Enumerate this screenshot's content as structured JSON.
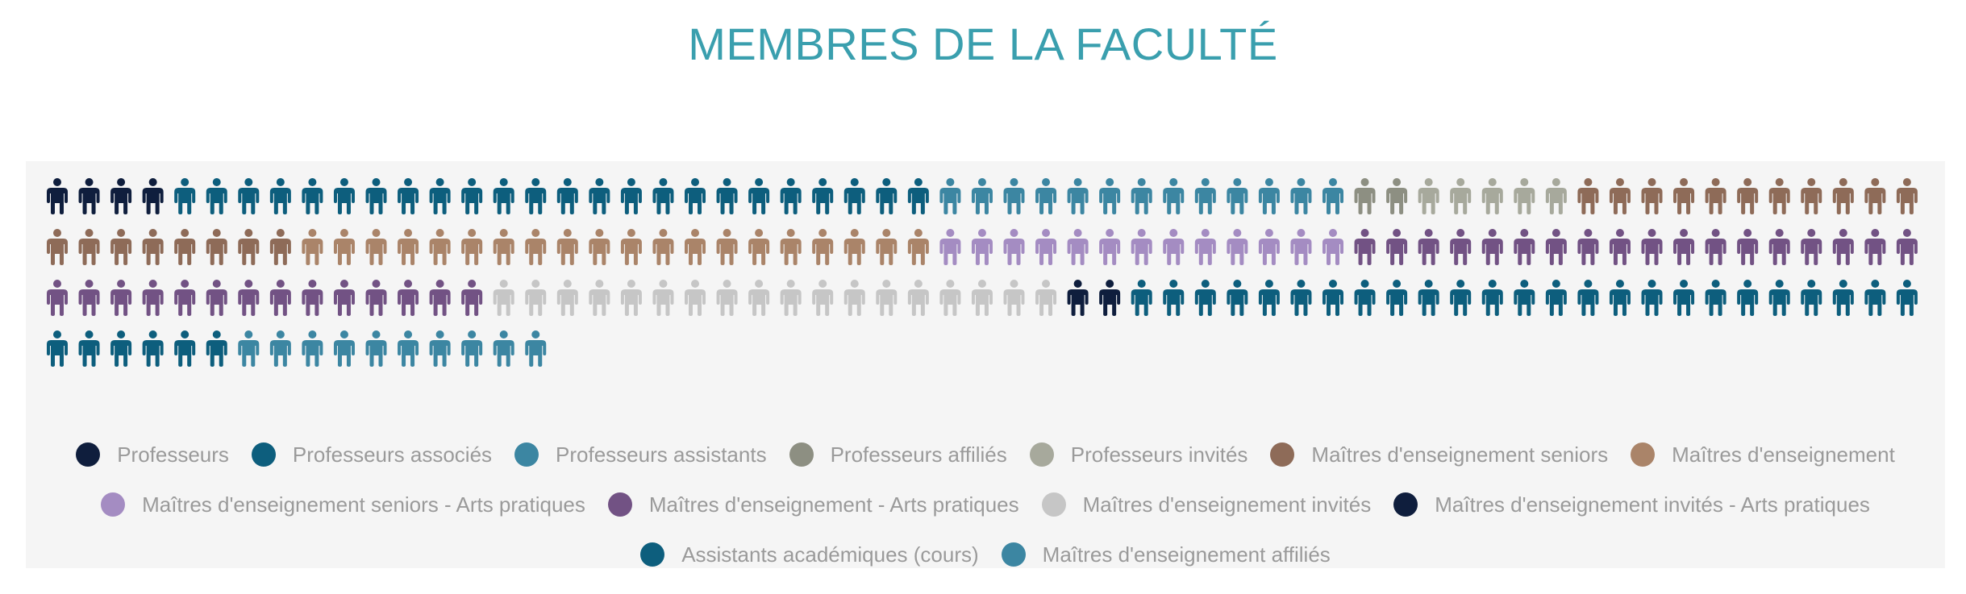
{
  "title": "MEMBRES DE LA FACULTÉ",
  "chart_data": {
    "type": "pictogram",
    "title": "MEMBRES DE LA FACULTÉ",
    "columns": 59,
    "series": [
      {
        "name": "Professeurs",
        "value": 4,
        "color": "#0f1e3d"
      },
      {
        "name": "Professeurs associés",
        "value": 24,
        "color": "#0d5e7d"
      },
      {
        "name": "Professeurs assistants",
        "value": 13,
        "color": "#3c86a2"
      },
      {
        "name": "Professeurs affiliés",
        "value": 2,
        "color": "#8d8f82"
      },
      {
        "name": "Professeurs invités",
        "value": 5,
        "color": "#a7a99c"
      },
      {
        "name": "Maîtres d'enseignement seniors",
        "value": 19,
        "color": "#8e6b58"
      },
      {
        "name": "Maîtres d'enseignement",
        "value": 20,
        "color": "#aa8469"
      },
      {
        "name": "Maîtres d'enseignement seniors - Arts pratiques",
        "value": 13,
        "color": "#a48cc2"
      },
      {
        "name": "Maîtres d'enseignement - Arts pratiques",
        "value": 32,
        "color": "#725284"
      },
      {
        "name": "Maîtres d'enseignement invités",
        "value": 18,
        "color": "#c6c6c6"
      },
      {
        "name": "Maîtres d'enseignement invités - Arts pratiques",
        "value": 2,
        "color": "#0f1e3d"
      },
      {
        "name": "Assistants académiques (cours)",
        "value": 31,
        "color": "#0d5e7d"
      },
      {
        "name": "Maîtres d'enseignement affiliés",
        "value": 10,
        "color": "#3c86a2"
      }
    ]
  },
  "legend": {
    "rows": [
      [
        {
          "label": "Professeurs",
          "color": "#0f1e3d"
        },
        {
          "label": "Professeurs associés",
          "color": "#0d5e7d"
        },
        {
          "label": "Professeurs assistants",
          "color": "#3c86a2"
        },
        {
          "label": "Professeurs affiliés",
          "color": "#8d8f82"
        },
        {
          "label": "Professeurs invités",
          "color": "#a7a99c"
        },
        {
          "label": "Maîtres d'enseignement seniors",
          "color": "#8e6b58"
        },
        {
          "label": "Maîtres d'enseignement",
          "color": "#aa8469"
        }
      ],
      [
        {
          "label": "Maîtres d'enseignement seniors - Arts pratiques",
          "color": "#a48cc2"
        },
        {
          "label": "Maîtres d'enseignement - Arts pratiques",
          "color": "#725284"
        },
        {
          "label": "Maîtres d'enseignement invités",
          "color": "#c6c6c6"
        },
        {
          "label": "Maîtres d'enseignement invités - Arts pratiques",
          "color": "#0f1e3d"
        }
      ],
      [
        {
          "label": "Assistants académiques (cours)",
          "color": "#0d5e7d"
        },
        {
          "label": "Maîtres d'enseignement affiliés",
          "color": "#3c86a2"
        }
      ]
    ]
  }
}
